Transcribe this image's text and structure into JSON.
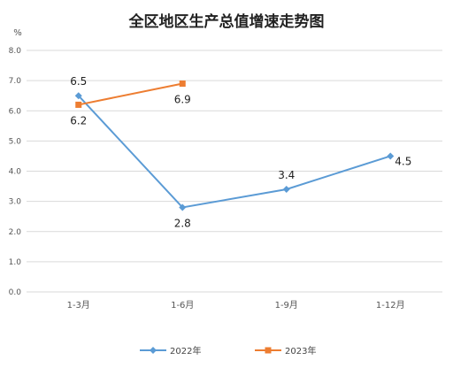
{
  "chart_data": {
    "type": "line",
    "title": "全区地区生产总值增速走势图",
    "ylabel": "%",
    "xlabel": "",
    "categories": [
      "1-3月",
      "1-6月",
      "1-9月",
      "1-12月"
    ],
    "y_ticks": [
      "0.0",
      "1.0",
      "2.0",
      "3.0",
      "4.0",
      "5.0",
      "6.0",
      "7.0",
      "8.0"
    ],
    "ylim": [
      0,
      8
    ],
    "grid": true,
    "legend_position": "bottom",
    "series": [
      {
        "name": "2022年",
        "values": [
          6.5,
          2.8,
          3.4,
          4.5
        ],
        "labels": [
          "6.5",
          "2.8",
          "3.4",
          "4.5"
        ],
        "color": "#5b9bd5",
        "marker": "diamond"
      },
      {
        "name": "2023年",
        "values": [
          6.2,
          6.9,
          null,
          null
        ],
        "labels": [
          "6.2",
          "6.9",
          "",
          ""
        ],
        "color": "#ed7d31",
        "marker": "square"
      }
    ]
  }
}
